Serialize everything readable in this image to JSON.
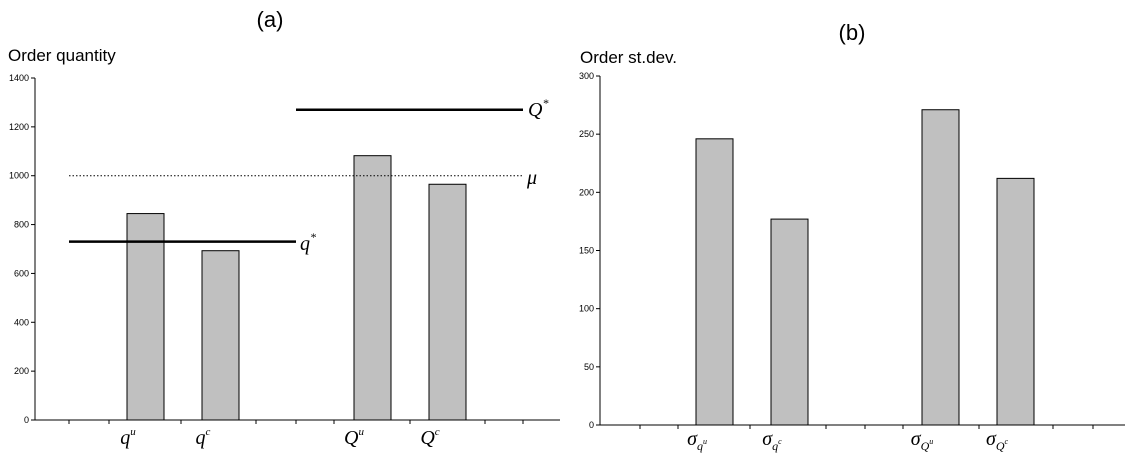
{
  "chart_data": [
    {
      "id": "a",
      "type": "bar",
      "panel_label": "(a)",
      "ylabel": "Order quantity",
      "ylim": [
        0,
        1400
      ],
      "yticks": [
        0,
        200,
        400,
        600,
        800,
        1000,
        1200,
        1400
      ],
      "categories": [
        {
          "base": "q",
          "sup": "u"
        },
        {
          "base": "q",
          "sup": "c"
        },
        {
          "base": "Q",
          "sup": "u"
        },
        {
          "base": "Q",
          "sup": "c"
        }
      ],
      "values": [
        845,
        693,
        1082,
        965
      ],
      "bar_color": "#c0c0c0",
      "reference_lines": [
        {
          "base": "q",
          "sup": "*",
          "value": 730,
          "style": "solid",
          "span": "left-group"
        },
        {
          "base": "Q",
          "sup": "*",
          "value": 1270,
          "style": "solid",
          "span": "right-group"
        },
        {
          "base": "μ",
          "sup": "",
          "value": 1000,
          "style": "dotted",
          "span": "full"
        }
      ],
      "grid": false
    },
    {
      "id": "b",
      "type": "bar",
      "panel_label": "(b)",
      "ylabel": "Order st.dev.",
      "ylim": [
        0,
        300
      ],
      "yticks": [
        0,
        50,
        100,
        150,
        200,
        250,
        300
      ],
      "categories": [
        {
          "base": "σ",
          "sub": "q",
          "subsup": "u"
        },
        {
          "base": "σ",
          "sub": "q",
          "subsup": "c"
        },
        {
          "base": "σ",
          "sub": "Q",
          "subsup": "u"
        },
        {
          "base": "σ",
          "sub": "Q",
          "subsup": "c"
        }
      ],
      "values": [
        246,
        177,
        271,
        212
      ],
      "bar_color": "#c0c0c0",
      "grid": false
    }
  ]
}
